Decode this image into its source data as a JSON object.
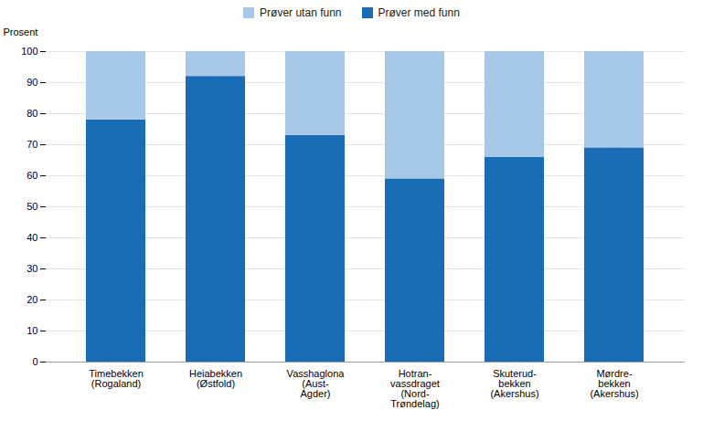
{
  "chart_data": {
    "type": "bar",
    "stacked": true,
    "categories": [
      "Timebekken\n(Rogaland)",
      "Heiabekken\n(Østfold)",
      "Vasshaglona\n(Aust-\nAgder)",
      "Hotran-\nvassdraget\n(Nord-\nTrøndelag)",
      "Skuterud-\nbekken\n(Akershus)",
      "Mørdre-\nbekken\n(Akershus)"
    ],
    "series": [
      {
        "name": "Prøver med funn",
        "color": "#1A6DB5",
        "values": [
          78,
          92,
          73,
          59,
          66,
          69
        ]
      },
      {
        "name": "Prøver utan funn",
        "color": "#A8C8E8",
        "values": [
          22,
          8,
          27,
          41,
          34,
          31
        ]
      }
    ],
    "ylabel": "Prosent",
    "ylim": [
      0,
      100
    ],
    "yticks": [
      0,
      10,
      20,
      30,
      40,
      50,
      60,
      70,
      80,
      90,
      100
    ],
    "grid": true,
    "legend": "top"
  }
}
